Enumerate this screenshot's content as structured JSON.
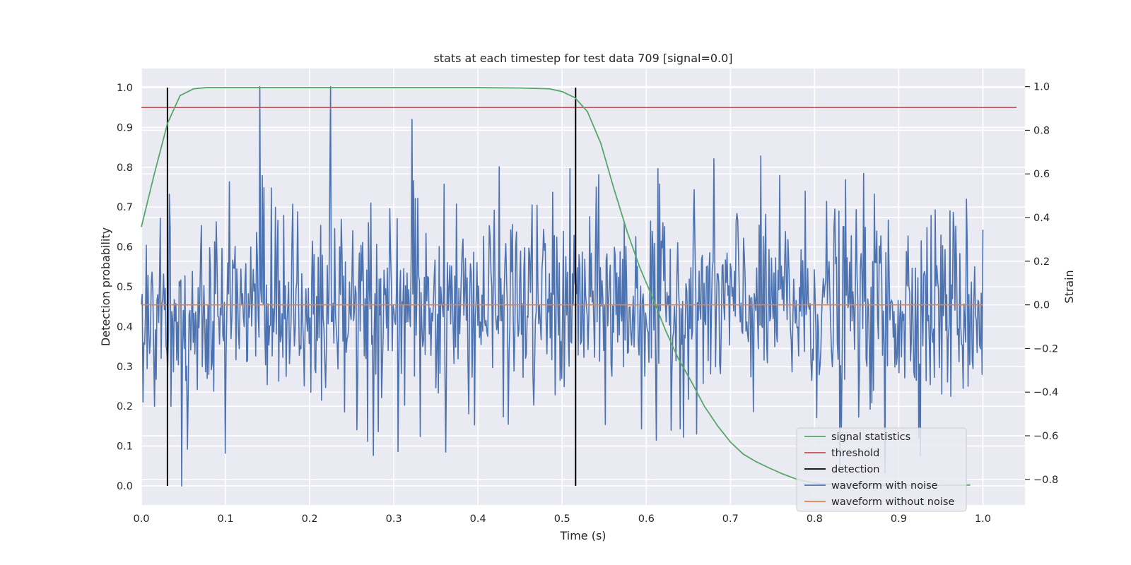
{
  "chart_data": {
    "type": "line",
    "title": "stats at each timestep for test data 709 [signal=0.0]",
    "xlabel": "Time (s)",
    "ylabel": "Detection probability",
    "y2label": "Strain",
    "xlim": [
      0.0,
      1.05
    ],
    "ylim": [
      -0.048,
      1.048
    ],
    "y2lim": [
      -0.917,
      1.083
    ],
    "x_ticks": [
      "0.0",
      "0.1",
      "0.2",
      "0.3",
      "0.4",
      "0.5",
      "0.6",
      "0.7",
      "0.8",
      "0.9",
      "1.0"
    ],
    "y_ticks": [
      "0.0",
      "0.1",
      "0.2",
      "0.3",
      "0.4",
      "0.5",
      "0.6",
      "0.7",
      "0.8",
      "0.9",
      "1.0"
    ],
    "y2_ticks": [
      "−0.8",
      "−0.6",
      "−0.4",
      "−0.2",
      "0.0",
      "0.2",
      "0.4",
      "0.6",
      "0.8",
      "1.0"
    ],
    "grid": true,
    "legend_position": "lower right",
    "legend": [
      "signal statistics",
      "threshold",
      "detection",
      "waveform with noise",
      "waveform without noise"
    ],
    "colors": {
      "signal_statistics": "#55a868",
      "threshold": "#c44e52",
      "detection": "#000000",
      "waveform_with_noise": "#4c72b0",
      "waveform_without_noise": "#dd8452",
      "plot_background": "#eaeaf2",
      "grid": "#ffffff"
    },
    "series": [
      {
        "name": "signal statistics",
        "axis": "left",
        "x": [
          0.0,
          0.015,
          0.031,
          0.046,
          0.062,
          0.077,
          0.1,
          0.2,
          0.3,
          0.4,
          0.45,
          0.47,
          0.485,
          0.5,
          0.515,
          0.53,
          0.546,
          0.561,
          0.577,
          0.592,
          0.608,
          0.623,
          0.638,
          0.654,
          0.669,
          0.685,
          0.7,
          0.715,
          0.731,
          0.746,
          0.762,
          0.777,
          0.792,
          0.808,
          0.823,
          0.838,
          0.854,
          0.869,
          0.885,
          0.9,
          0.92,
          0.95,
          0.985
        ],
        "y": [
          0.65,
          0.78,
          0.91,
          0.98,
          0.997,
          1.0,
          1.0,
          1.0,
          1.0,
          1.0,
          0.999,
          0.998,
          0.997,
          0.99,
          0.975,
          0.94,
          0.86,
          0.75,
          0.64,
          0.55,
          0.47,
          0.39,
          0.32,
          0.26,
          0.2,
          0.15,
          0.11,
          0.08,
          0.06,
          0.045,
          0.03,
          0.018,
          0.01,
          0.005,
          0.003,
          0.002,
          0.001,
          0.001,
          0.001,
          0.001,
          0.001,
          0.001,
          0.002
        ]
      },
      {
        "name": "threshold",
        "axis": "left",
        "x": [
          0.0,
          1.04
        ],
        "y": [
          0.95,
          0.95
        ]
      },
      {
        "name": "detection",
        "axis": "left",
        "type": "vlines",
        "x": [
          0.031,
          0.516
        ],
        "ymin": 0.0,
        "ymax": 1.0
      },
      {
        "name": "waveform with noise",
        "axis": "right",
        "x_start": 0.0,
        "x_end": 1.0,
        "n_points": 1024,
        "spikes": [
          {
            "x": 0.141,
            "y": 1.0
          },
          {
            "x": 0.225,
            "y": 1.0
          },
          {
            "x": 0.322,
            "y": 0.85
          },
          {
            "x": 0.048,
            "y": -0.83
          },
          {
            "x": 0.1,
            "y": -0.68
          },
          {
            "x": 0.276,
            "y": -0.69
          },
          {
            "x": 0.612,
            "y": -0.62
          },
          {
            "x": 0.83,
            "y": -0.74
          },
          {
            "x": 0.884,
            "y": -0.77
          }
        ]
      },
      {
        "name": "waveform without noise",
        "axis": "right",
        "x": [
          0.0,
          1.0
        ],
        "y": [
          0.0,
          0.0
        ]
      }
    ]
  }
}
